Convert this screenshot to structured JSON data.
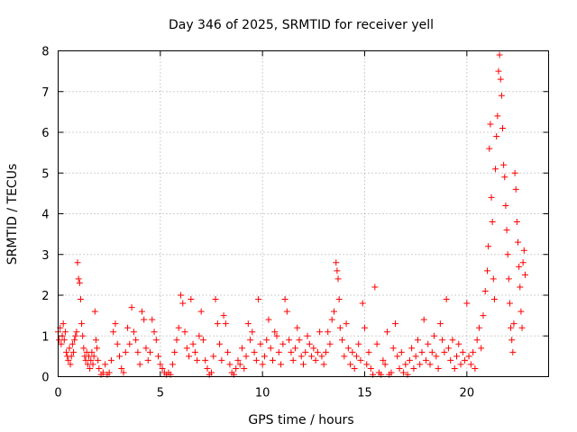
{
  "chart_data": {
    "type": "scatter",
    "title": "Day 346 of 2025, SRMTID for receiver yell",
    "xlabel": "GPS time / hours",
    "ylabel": "SRMTID / TECUs",
    "xlim": [
      0,
      24
    ],
    "ylim": [
      0,
      8
    ],
    "x_ticks": [
      0,
      5,
      10,
      15,
      20
    ],
    "y_ticks": [
      0,
      1,
      2,
      3,
      4,
      5,
      6,
      7,
      8
    ],
    "grid": true,
    "marker": "plus",
    "series": [
      {
        "name": "SRMTID",
        "color": "#ff0000",
        "points": [
          [
            0.0,
            1.1
          ],
          [
            0.05,
            0.9
          ],
          [
            0.1,
            1.2
          ],
          [
            0.15,
            0.8
          ],
          [
            0.2,
            1.0
          ],
          [
            0.25,
            1.3
          ],
          [
            0.3,
            0.9
          ],
          [
            0.35,
            1.1
          ],
          [
            0.4,
            0.6
          ],
          [
            0.45,
            0.5
          ],
          [
            0.5,
            0.4
          ],
          [
            0.55,
            0.7
          ],
          [
            0.6,
            0.3
          ],
          [
            0.65,
            0.5
          ],
          [
            0.7,
            0.8
          ],
          [
            0.75,
            0.6
          ],
          [
            0.8,
            0.9
          ],
          [
            0.85,
            1.0
          ],
          [
            0.9,
            1.1
          ],
          [
            0.95,
            2.8
          ],
          [
            1.0,
            2.4
          ],
          [
            1.05,
            2.3
          ],
          [
            1.1,
            1.9
          ],
          [
            1.15,
            1.3
          ],
          [
            1.2,
            1.0
          ],
          [
            1.25,
            0.7
          ],
          [
            1.3,
            0.5
          ],
          [
            1.35,
            0.4
          ],
          [
            1.4,
            0.6
          ],
          [
            1.45,
            0.3
          ],
          [
            1.5,
            0.5
          ],
          [
            1.55,
            0.2
          ],
          [
            1.6,
            0.4
          ],
          [
            1.65,
            0.6
          ],
          [
            1.7,
            0.3
          ],
          [
            1.75,
            0.5
          ],
          [
            1.8,
            1.6
          ],
          [
            1.85,
            0.9
          ],
          [
            1.9,
            0.7
          ],
          [
            1.95,
            0.4
          ],
          [
            2.0,
            0.2
          ],
          [
            2.1,
            0.05
          ],
          [
            2.2,
            0.1
          ],
          [
            2.3,
            0.3
          ],
          [
            2.4,
            0.05
          ],
          [
            2.5,
            0.1
          ],
          [
            2.6,
            0.4
          ],
          [
            2.7,
            1.1
          ],
          [
            2.8,
            1.3
          ],
          [
            2.9,
            0.8
          ],
          [
            3.0,
            0.5
          ],
          [
            3.1,
            0.2
          ],
          [
            3.2,
            0.1
          ],
          [
            3.3,
            0.6
          ],
          [
            3.4,
            1.2
          ],
          [
            3.5,
            0.8
          ],
          [
            3.6,
            1.7
          ],
          [
            3.7,
            1.1
          ],
          [
            3.8,
            0.9
          ],
          [
            3.9,
            0.6
          ],
          [
            4.0,
            0.3
          ],
          [
            4.1,
            1.6
          ],
          [
            4.2,
            1.4
          ],
          [
            4.3,
            0.7
          ],
          [
            4.4,
            0.4
          ],
          [
            4.5,
            0.6
          ],
          [
            4.6,
            1.4
          ],
          [
            4.7,
            1.1
          ],
          [
            4.8,
            0.9
          ],
          [
            4.9,
            0.5
          ],
          [
            5.0,
            0.3
          ],
          [
            5.1,
            0.2
          ],
          [
            5.2,
            0.1
          ],
          [
            5.3,
            0.05
          ],
          [
            5.4,
            0.1
          ],
          [
            5.5,
            0.05
          ],
          [
            5.6,
            0.3
          ],
          [
            5.7,
            0.6
          ],
          [
            5.8,
            0.9
          ],
          [
            5.9,
            1.2
          ],
          [
            6.0,
            2.0
          ],
          [
            6.1,
            1.8
          ],
          [
            6.2,
            1.1
          ],
          [
            6.3,
            0.7
          ],
          [
            6.4,
            0.5
          ],
          [
            6.5,
            1.9
          ],
          [
            6.6,
            0.8
          ],
          [
            6.7,
            0.6
          ],
          [
            6.8,
            0.4
          ],
          [
            6.9,
            1.0
          ],
          [
            7.0,
            1.6
          ],
          [
            7.1,
            0.9
          ],
          [
            7.2,
            0.4
          ],
          [
            7.3,
            0.2
          ],
          [
            7.4,
            0.05
          ],
          [
            7.5,
            0.1
          ],
          [
            7.6,
            0.5
          ],
          [
            7.7,
            1.9
          ],
          [
            7.8,
            1.3
          ],
          [
            7.9,
            0.8
          ],
          [
            8.0,
            0.4
          ],
          [
            8.1,
            1.5
          ],
          [
            8.2,
            1.3
          ],
          [
            8.3,
            0.6
          ],
          [
            8.4,
            0.3
          ],
          [
            8.5,
            0.1
          ],
          [
            8.6,
            0.05
          ],
          [
            8.7,
            0.2
          ],
          [
            8.8,
            0.4
          ],
          [
            8.9,
            0.3
          ],
          [
            9.0,
            0.7
          ],
          [
            9.1,
            0.2
          ],
          [
            9.2,
            0.5
          ],
          [
            9.3,
            1.3
          ],
          [
            9.4,
            0.9
          ],
          [
            9.5,
            1.1
          ],
          [
            9.6,
            0.6
          ],
          [
            9.7,
            0.4
          ],
          [
            9.8,
            1.9
          ],
          [
            9.9,
            0.8
          ],
          [
            10.0,
            0.3
          ],
          [
            10.1,
            0.5
          ],
          [
            10.2,
            0.9
          ],
          [
            10.3,
            1.4
          ],
          [
            10.4,
            0.7
          ],
          [
            10.5,
            0.4
          ],
          [
            10.6,
            1.1
          ],
          [
            10.7,
            1.0
          ],
          [
            10.8,
            0.6
          ],
          [
            10.9,
            0.3
          ],
          [
            11.0,
            0.8
          ],
          [
            11.1,
            1.9
          ],
          [
            11.2,
            1.6
          ],
          [
            11.3,
            0.9
          ],
          [
            11.4,
            0.6
          ],
          [
            11.5,
            0.4
          ],
          [
            11.6,
            0.7
          ],
          [
            11.7,
            1.2
          ],
          [
            11.8,
            0.9
          ],
          [
            11.9,
            0.5
          ],
          [
            12.0,
            0.3
          ],
          [
            12.1,
            0.6
          ],
          [
            12.2,
            1.0
          ],
          [
            12.3,
            0.8
          ],
          [
            12.4,
            0.5
          ],
          [
            12.5,
            0.7
          ],
          [
            12.6,
            0.4
          ],
          [
            12.7,
            0.6
          ],
          [
            12.8,
            1.1
          ],
          [
            12.9,
            0.5
          ],
          [
            13.0,
            0.3
          ],
          [
            13.1,
            0.6
          ],
          [
            13.2,
            1.1
          ],
          [
            13.3,
            0.8
          ],
          [
            13.4,
            1.4
          ],
          [
            13.5,
            1.6
          ],
          [
            13.6,
            2.8
          ],
          [
            13.65,
            2.6
          ],
          [
            13.7,
            2.4
          ],
          [
            13.75,
            1.9
          ],
          [
            13.8,
            1.2
          ],
          [
            13.9,
            0.9
          ],
          [
            14.0,
            0.5
          ],
          [
            14.1,
            1.3
          ],
          [
            14.2,
            0.7
          ],
          [
            14.3,
            0.3
          ],
          [
            14.4,
            0.6
          ],
          [
            14.5,
            0.2
          ],
          [
            14.6,
            0.5
          ],
          [
            14.7,
            0.8
          ],
          [
            14.8,
            0.4
          ],
          [
            14.9,
            1.8
          ],
          [
            15.0,
            1.2
          ],
          [
            15.1,
            0.3
          ],
          [
            15.2,
            0.6
          ],
          [
            15.3,
            0.2
          ],
          [
            15.4,
            0.05
          ],
          [
            15.5,
            2.2
          ],
          [
            15.6,
            0.8
          ],
          [
            15.7,
            0.1
          ],
          [
            15.8,
            0.05
          ],
          [
            15.9,
            0.4
          ],
          [
            16.0,
            0.3
          ],
          [
            16.1,
            1.1
          ],
          [
            16.2,
            0.05
          ],
          [
            16.3,
            0.1
          ],
          [
            16.4,
            0.7
          ],
          [
            16.5,
            1.3
          ],
          [
            16.6,
            0.5
          ],
          [
            16.7,
            0.2
          ],
          [
            16.8,
            0.6
          ],
          [
            16.9,
            0.1
          ],
          [
            17.0,
            0.3
          ],
          [
            17.1,
            0.05
          ],
          [
            17.2,
            0.4
          ],
          [
            17.3,
            0.7
          ],
          [
            17.4,
            0.2
          ],
          [
            17.5,
            0.5
          ],
          [
            17.6,
            0.9
          ],
          [
            17.7,
            0.3
          ],
          [
            17.8,
            0.6
          ],
          [
            17.9,
            1.4
          ],
          [
            18.0,
            0.4
          ],
          [
            18.1,
            0.8
          ],
          [
            18.2,
            0.3
          ],
          [
            18.3,
            0.6
          ],
          [
            18.4,
            1.0
          ],
          [
            18.5,
            0.5
          ],
          [
            18.6,
            0.2
          ],
          [
            18.7,
            1.3
          ],
          [
            18.8,
            0.9
          ],
          [
            18.9,
            0.6
          ],
          [
            19.0,
            1.9
          ],
          [
            19.1,
            0.7
          ],
          [
            19.2,
            0.4
          ],
          [
            19.3,
            0.9
          ],
          [
            19.4,
            0.2
          ],
          [
            19.5,
            0.5
          ],
          [
            19.6,
            0.8
          ],
          [
            19.7,
            0.3
          ],
          [
            19.8,
            0.6
          ],
          [
            19.9,
            0.4
          ],
          [
            20.0,
            1.8
          ],
          [
            20.1,
            0.5
          ],
          [
            20.2,
            0.3
          ],
          [
            20.3,
            0.6
          ],
          [
            20.4,
            0.2
          ],
          [
            20.5,
            0.9
          ],
          [
            20.6,
            1.2
          ],
          [
            20.7,
            0.7
          ],
          [
            20.8,
            1.5
          ],
          [
            20.9,
            2.1
          ],
          [
            21.0,
            2.6
          ],
          [
            21.05,
            3.2
          ],
          [
            21.1,
            5.6
          ],
          [
            21.15,
            6.2
          ],
          [
            21.2,
            4.4
          ],
          [
            21.25,
            3.8
          ],
          [
            21.3,
            2.4
          ],
          [
            21.35,
            1.9
          ],
          [
            21.4,
            5.1
          ],
          [
            21.45,
            5.9
          ],
          [
            21.5,
            6.4
          ],
          [
            21.55,
            7.5
          ],
          [
            21.6,
            7.9
          ],
          [
            21.65,
            7.3
          ],
          [
            21.7,
            6.9
          ],
          [
            21.75,
            6.1
          ],
          [
            21.8,
            5.2
          ],
          [
            21.85,
            4.9
          ],
          [
            21.9,
            4.2
          ],
          [
            21.95,
            3.6
          ],
          [
            22.0,
            3.0
          ],
          [
            22.05,
            2.4
          ],
          [
            22.1,
            1.8
          ],
          [
            22.15,
            1.2
          ],
          [
            22.2,
            0.9
          ],
          [
            22.25,
            0.6
          ],
          [
            22.3,
            1.3
          ],
          [
            22.35,
            5.0
          ],
          [
            22.4,
            4.6
          ],
          [
            22.45,
            3.8
          ],
          [
            22.5,
            3.3
          ],
          [
            22.55,
            2.7
          ],
          [
            22.6,
            2.2
          ],
          [
            22.65,
            1.6
          ],
          [
            22.7,
            1.2
          ],
          [
            22.75,
            2.8
          ],
          [
            22.8,
            3.1
          ],
          [
            22.85,
            2.5
          ]
        ]
      }
    ]
  }
}
